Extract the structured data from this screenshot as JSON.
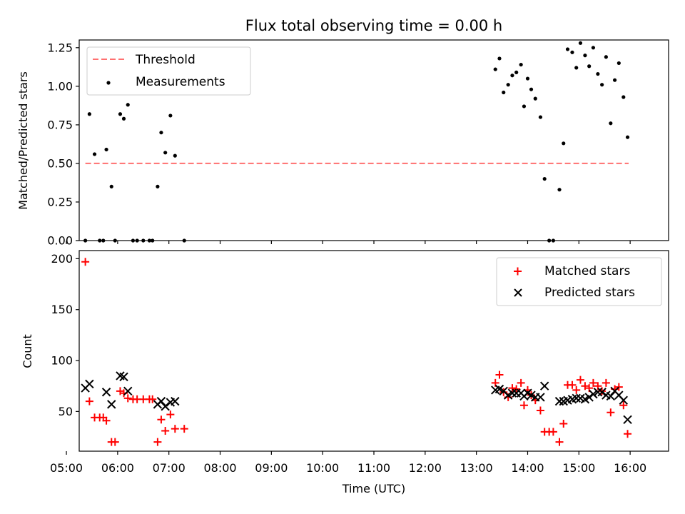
{
  "chart_data": [
    {
      "type": "scatter",
      "title": "Flux total observing time = 0.00 h",
      "xlabel": "",
      "ylabel": "Matched/Predicted stars",
      "xlim": [
        5.25,
        16.75
      ],
      "ylim": [
        0,
        1.3
      ],
      "yticks": [
        "0.00",
        "0.25",
        "0.50",
        "0.75",
        "1.00",
        "1.25"
      ],
      "ytick_values": [
        0,
        0.25,
        0.5,
        0.75,
        1.0,
        1.25
      ],
      "legend_position": "top-left",
      "threshold": {
        "name": "Threshold",
        "value": 0.5,
        "x_start": 5.37,
        "x_end": 15.97,
        "color": "#ff7070",
        "style": "dashed"
      },
      "series": [
        {
          "name": "Measurements",
          "marker": "dot",
          "color": "#000000",
          "points": [
            [
              5.37,
              0.0
            ],
            [
              5.45,
              0.82
            ],
            [
              5.55,
              0.56
            ],
            [
              5.65,
              0.0
            ],
            [
              5.72,
              0.0
            ],
            [
              5.78,
              0.59
            ],
            [
              5.88,
              0.35
            ],
            [
              5.95,
              0.0
            ],
            [
              6.05,
              0.82
            ],
            [
              6.12,
              0.79
            ],
            [
              6.2,
              0.88
            ],
            [
              6.3,
              0.0
            ],
            [
              6.38,
              0.0
            ],
            [
              6.5,
              0.0
            ],
            [
              6.62,
              0.0
            ],
            [
              6.68,
              0.0
            ],
            [
              6.78,
              0.35
            ],
            [
              6.85,
              0.7
            ],
            [
              6.93,
              0.57
            ],
            [
              7.03,
              0.81
            ],
            [
              7.12,
              0.55
            ],
            [
              7.3,
              0.0
            ],
            [
              13.37,
              1.11
            ],
            [
              13.45,
              1.18
            ],
            [
              13.53,
              0.96
            ],
            [
              13.62,
              1.01
            ],
            [
              13.7,
              1.07
            ],
            [
              13.78,
              1.09
            ],
            [
              13.87,
              1.14
            ],
            [
              13.93,
              0.87
            ],
            [
              14.0,
              1.05
            ],
            [
              14.07,
              0.98
            ],
            [
              14.15,
              0.92
            ],
            [
              14.25,
              0.8
            ],
            [
              14.33,
              0.4
            ],
            [
              14.42,
              0.0
            ],
            [
              14.5,
              0.0
            ],
            [
              14.62,
              0.33
            ],
            [
              14.7,
              0.63
            ],
            [
              14.78,
              1.24
            ],
            [
              14.87,
              1.22
            ],
            [
              14.95,
              1.12
            ],
            [
              15.03,
              1.28
            ],
            [
              15.12,
              1.2
            ],
            [
              15.2,
              1.13
            ],
            [
              15.28,
              1.25
            ],
            [
              15.37,
              1.08
            ],
            [
              15.45,
              1.01
            ],
            [
              15.53,
              1.19
            ],
            [
              15.62,
              0.76
            ],
            [
              15.7,
              1.04
            ],
            [
              15.78,
              1.15
            ],
            [
              15.87,
              0.93
            ],
            [
              15.95,
              0.67
            ]
          ]
        }
      ]
    },
    {
      "type": "scatter",
      "title": "",
      "xlabel": "Time (UTC)",
      "ylabel": "Count",
      "xlim": [
        5.25,
        16.75
      ],
      "ylim": [
        11,
        208
      ],
      "xticks": [
        "05:00",
        "06:00",
        "07:00",
        "08:00",
        "09:00",
        "10:00",
        "11:00",
        "12:00",
        "13:00",
        "14:00",
        "15:00",
        "16:00"
      ],
      "xtick_values": [
        5,
        6,
        7,
        8,
        9,
        10,
        11,
        12,
        13,
        14,
        15,
        16
      ],
      "yticks": [
        "50",
        "100",
        "150",
        "200"
      ],
      "ytick_values": [
        50,
        100,
        150,
        200
      ],
      "legend_position": "top-right",
      "series": [
        {
          "name": "Matched stars",
          "marker": "plus",
          "color": "#ff0000",
          "points": [
            [
              5.37,
              197
            ],
            [
              5.45,
              60
            ],
            [
              5.55,
              44
            ],
            [
              5.65,
              44
            ],
            [
              5.72,
              44
            ],
            [
              5.78,
              41
            ],
            [
              5.88,
              20
            ],
            [
              5.95,
              20
            ],
            [
              6.05,
              70
            ],
            [
              6.12,
              68
            ],
            [
              6.2,
              63
            ],
            [
              6.3,
              62
            ],
            [
              6.38,
              62
            ],
            [
              6.5,
              62
            ],
            [
              6.62,
              62
            ],
            [
              6.68,
              62
            ],
            [
              6.78,
              20
            ],
            [
              6.85,
              42
            ],
            [
              6.93,
              31
            ],
            [
              7.03,
              47
            ],
            [
              7.12,
              33
            ],
            [
              7.3,
              33
            ],
            [
              13.37,
              78
            ],
            [
              13.45,
              86
            ],
            [
              13.53,
              69
            ],
            [
              13.62,
              64
            ],
            [
              13.7,
              73
            ],
            [
              13.78,
              72
            ],
            [
              13.87,
              78
            ],
            [
              13.93,
              56
            ],
            [
              14.0,
              71
            ],
            [
              14.07,
              66
            ],
            [
              14.15,
              61
            ],
            [
              14.25,
              51
            ],
            [
              14.33,
              30
            ],
            [
              14.42,
              30
            ],
            [
              14.5,
              30
            ],
            [
              14.62,
              20
            ],
            [
              14.7,
              38
            ],
            [
              14.78,
              76
            ],
            [
              14.87,
              76
            ],
            [
              14.95,
              71
            ],
            [
              15.03,
              81
            ],
            [
              15.12,
              75
            ],
            [
              15.2,
              73
            ],
            [
              15.28,
              78
            ],
            [
              15.37,
              75
            ],
            [
              15.45,
              70
            ],
            [
              15.53,
              78
            ],
            [
              15.62,
              49
            ],
            [
              15.7,
              72
            ],
            [
              15.78,
              74
            ],
            [
              15.87,
              56
            ],
            [
              15.95,
              28
            ]
          ]
        },
        {
          "name": "Predicted stars",
          "marker": "x",
          "color": "#000000",
          "points": [
            [
              5.37,
              73
            ],
            [
              5.45,
              77
            ],
            [
              5.78,
              69
            ],
            [
              5.88,
              57
            ],
            [
              6.05,
              85
            ],
            [
              6.12,
              84
            ],
            [
              6.2,
              70
            ],
            [
              6.78,
              57
            ],
            [
              6.85,
              60
            ],
            [
              6.93,
              55
            ],
            [
              7.03,
              59
            ],
            [
              7.12,
              60
            ],
            [
              13.37,
              71
            ],
            [
              13.45,
              72
            ],
            [
              13.53,
              70
            ],
            [
              13.62,
              66
            ],
            [
              13.7,
              68
            ],
            [
              13.78,
              68
            ],
            [
              13.87,
              68
            ],
            [
              13.93,
              65
            ],
            [
              14.0,
              68
            ],
            [
              14.07,
              66
            ],
            [
              14.15,
              64
            ],
            [
              14.25,
              64
            ],
            [
              14.33,
              75
            ],
            [
              14.62,
              60
            ],
            [
              14.7,
              60
            ],
            [
              14.78,
              61
            ],
            [
              14.87,
              62
            ],
            [
              14.95,
              63
            ],
            [
              15.03,
              63
            ],
            [
              15.12,
              62
            ],
            [
              15.2,
              64
            ],
            [
              15.28,
              67
            ],
            [
              15.37,
              69
            ],
            [
              15.45,
              69
            ],
            [
              15.53,
              66
            ],
            [
              15.62,
              65
            ],
            [
              15.7,
              70
            ],
            [
              15.78,
              66
            ],
            [
              15.87,
              61
            ],
            [
              15.95,
              42
            ]
          ]
        }
      ]
    }
  ]
}
